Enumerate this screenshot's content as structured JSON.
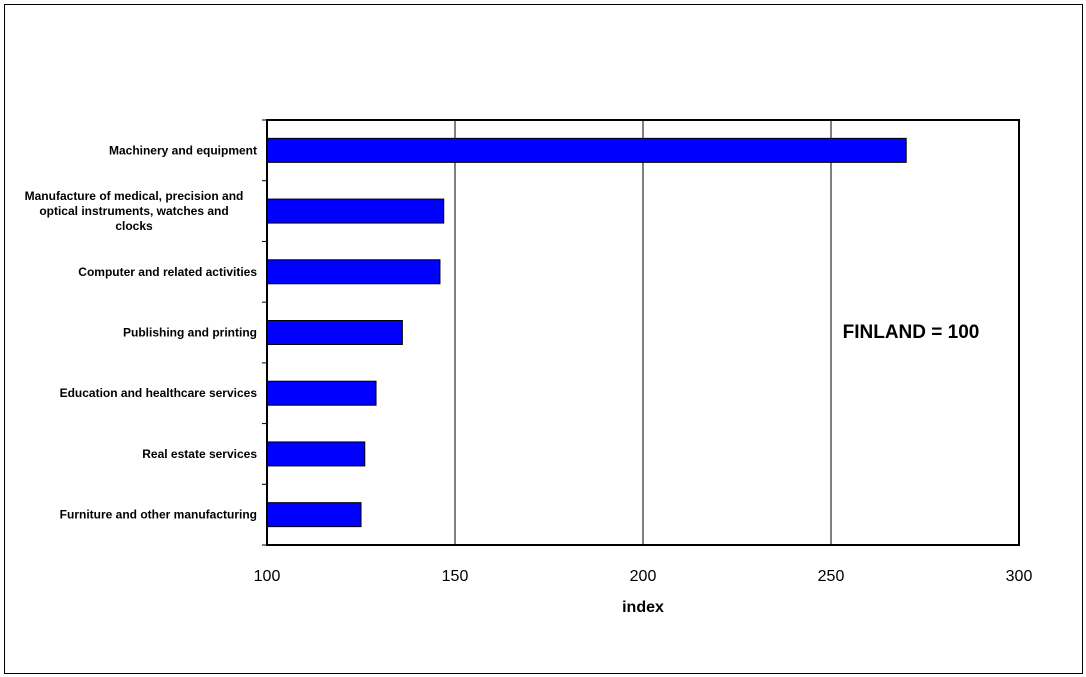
{
  "chart_data": {
    "type": "bar",
    "orientation": "horizontal",
    "categories": [
      "Machinery and equipment",
      "Manufacture of medical, precision and optical instruments, watches and clocks",
      "Computer and related activities",
      "Publishing and printing",
      "Education and healthcare services",
      "Real estate services",
      "Furniture and other manufacturing"
    ],
    "category_label_lines": [
      [
        "Machinery and equipment"
      ],
      [
        "Manufacture of medical, precision and",
        "optical instruments, watches and",
        "clocks"
      ],
      [
        "Computer and related activities"
      ],
      [
        "Publishing and printing"
      ],
      [
        "Education and healthcare services"
      ],
      [
        "Real estate services"
      ],
      [
        "Furniture and other manufacturing"
      ]
    ],
    "values": [
      270,
      147,
      146,
      136,
      129,
      126,
      125
    ],
    "xlabel": "index",
    "xlim": [
      100,
      300
    ],
    "xticks": [
      100,
      150,
      200,
      250,
      300
    ],
    "xtick_labels": [
      "100",
      "150",
      "200",
      "250",
      "300"
    ],
    "annotation": "FINLAND = 100",
    "grid": "vertical",
    "bar_color": "#0000ff"
  }
}
